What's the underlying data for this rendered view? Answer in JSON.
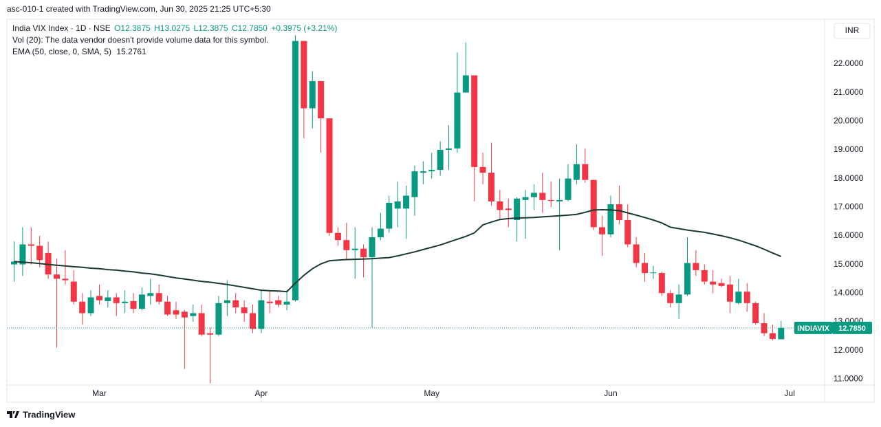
{
  "header": {
    "title": "asc-010-1 created with TradingView.com, Jun 30, 2025 21:25 UTC+5:30"
  },
  "legend": {
    "symbol": "India VIX Index · 1D · NSE",
    "open": "O12.3875",
    "high": "H13.0275",
    "low": "L12.3875",
    "close": "C12.7850",
    "change": "+0.3975 (+3.21%)",
    "volume_note": "Vol (20): The data vendor doesn't provide volume data for this symbol.",
    "ema_name": "EMA (50, close, 0, SMA, 5)",
    "ema_value": "15.2761"
  },
  "currency": "INR",
  "price_tag": {
    "symbol": "INDIAVIX",
    "value": "12.7850"
  },
  "footer": {
    "brand": "TradingView"
  },
  "chart_data": {
    "type": "candlestick",
    "up_color": "#089981",
    "down_color": "#f23645",
    "open": [
      15.0,
      15.0,
      15.7,
      15.65,
      15.4,
      14.65,
      14.5,
      14.4,
      13.7,
      13.3,
      13.9,
      13.72,
      13.85,
      13.65,
      13.72,
      13.45,
      13.9,
      14.0,
      13.7,
      13.4,
      13.35,
      13.2,
      13.3,
      12.6,
      12.55,
      13.65,
      13.75,
      13.5,
      13.3,
      12.75,
      13.7,
      13.75,
      13.6,
      13.75,
      22.8,
      20.45,
      21.4,
      20.1,
      16.1,
      15.85,
      15.5,
      15.55,
      15.25,
      15.95,
      16.25,
      16.95,
      16.95,
      17.35,
      18.2,
      18.25,
      18.3,
      19.0,
      19.05,
      21.0,
      21.6,
      18.4,
      18.2,
      17.2,
      16.95,
      16.55,
      17.25,
      17.35,
      17.5,
      17.25,
      17.2,
      17.25,
      17.95,
      18.5,
      17.95,
      16.3,
      16.05,
      17.1,
      16.55,
      15.7,
      15.05,
      14.7,
      14.7,
      14.0,
      13.65,
      13.95,
      15.05,
      14.8,
      14.4,
      14.35,
      14.3,
      13.65,
      14.05,
      13.65,
      12.95,
      12.6,
      12.3875
    ],
    "high": [
      15.8,
      16.3,
      16.3,
      16.0,
      15.8,
      15.2,
      15.5,
      14.8,
      14.0,
      14.1,
      14.3,
      14.1,
      14.0,
      14.1,
      14.0,
      14.2,
      14.5,
      14.3,
      13.9,
      13.7,
      13.4,
      13.6,
      13.6,
      12.8,
      13.9,
      14.45,
      14.0,
      13.75,
      13.6,
      14.1,
      14.1,
      13.9,
      14.1,
      23.0,
      22.8,
      21.75,
      21.4,
      20.1,
      16.3,
      16.45,
      16.3,
      15.7,
      16.3,
      16.8,
      17.4,
      17.9,
      17.75,
      18.45,
      18.6,
      18.9,
      19.3,
      19.85,
      22.4,
      22.75,
      21.6,
      18.9,
      19.25,
      17.6,
      17.3,
      17.35,
      17.6,
      17.8,
      18.2,
      17.9,
      18.0,
      18.5,
      19.2,
      19.05,
      17.95,
      16.7,
      17.4,
      17.75,
      17.1,
      15.95,
      15.4,
      14.95,
      14.75,
      14.1,
      14.3,
      15.95,
      15.5,
      15.0,
      14.8,
      14.5,
      14.6,
      14.5,
      14.35,
      13.7,
      13.3,
      12.9,
      13.0275
    ],
    "low": [
      14.4,
      14.6,
      15.0,
      14.9,
      14.5,
      12.1,
      14.3,
      13.6,
      12.9,
      13.2,
      13.6,
      13.5,
      13.2,
      13.3,
      13.3,
      13.4,
      13.6,
      13.6,
      13.2,
      13.1,
      11.35,
      13.0,
      12.5,
      10.85,
      12.5,
      13.2,
      13.3,
      13.0,
      12.6,
      12.6,
      13.3,
      13.5,
      13.4,
      13.7,
      19.4,
      19.75,
      18.9,
      16.0,
      15.65,
      15.15,
      14.5,
      14.55,
      12.8,
      15.85,
      16.1,
      16.3,
      15.9,
      16.7,
      17.8,
      18.0,
      18.1,
      18.3,
      18.9,
      21.0,
      17.2,
      17.8,
      17.05,
      16.6,
      16.3,
      15.8,
      15.9,
      16.9,
      16.8,
      17.0,
      15.5,
      17.2,
      17.8,
      17.85,
      16.2,
      15.3,
      15.95,
      16.4,
      15.6,
      14.9,
      14.4,
      14.5,
      13.9,
      13.5,
      13.1,
      13.9,
      14.6,
      14.3,
      14.0,
      14.2,
      13.3,
      13.6,
      13.35,
      12.9,
      12.5,
      12.35,
      12.3875
    ],
    "close": [
      15.1,
      15.7,
      15.65,
      15.15,
      14.65,
      14.5,
      14.45,
      13.7,
      13.3,
      13.85,
      13.75,
      13.85,
      13.65,
      13.7,
      13.45,
      13.95,
      14.0,
      13.7,
      13.25,
      13.25,
      13.15,
      13.3,
      12.55,
      12.55,
      13.65,
      13.75,
      13.5,
      13.3,
      12.75,
      13.75,
      13.65,
      13.6,
      13.7,
      22.8,
      20.45,
      21.4,
      20.1,
      16.1,
      15.85,
      15.5,
      15.55,
      15.25,
      15.95,
      16.25,
      17.15,
      17.2,
      17.4,
      18.25,
      18.25,
      18.3,
      19.0,
      19.05,
      21.0,
      21.6,
      18.4,
      18.2,
      17.2,
      16.9,
      16.9,
      17.3,
      17.35,
      17.5,
      17.25,
      17.22,
      17.25,
      18.0,
      18.5,
      17.95,
      16.3,
      16.05,
      17.1,
      16.55,
      15.7,
      15.05,
      14.7,
      14.72,
      14.0,
      13.65,
      13.95,
      15.05,
      14.8,
      14.4,
      14.3,
      14.25,
      13.7,
      14.05,
      13.65,
      12.95,
      12.6,
      12.4,
      12.785
    ],
    "ema": {
      "color": "#1b3a2f",
      "values": [
        15.1,
        15.08,
        15.06,
        15.03,
        15.0,
        14.97,
        14.95,
        14.92,
        14.9,
        14.87,
        14.85,
        14.82,
        14.8,
        14.77,
        14.74,
        14.7,
        14.67,
        14.63,
        14.58,
        14.53,
        14.49,
        14.45,
        14.41,
        14.38,
        14.34,
        14.3,
        14.25,
        14.2,
        14.15,
        14.1,
        14.08,
        14.07,
        14.05,
        14.35,
        14.62,
        14.85,
        15.02,
        15.13,
        15.15,
        15.17,
        15.18,
        15.19,
        15.2,
        15.22,
        15.24,
        15.3,
        15.37,
        15.44,
        15.52,
        15.6,
        15.68,
        15.78,
        15.88,
        15.98,
        16.1,
        16.38,
        16.48,
        16.57,
        16.6,
        16.62,
        16.63,
        16.64,
        16.66,
        16.68,
        16.7,
        16.72,
        16.75,
        16.82,
        16.9,
        16.91,
        16.9,
        16.88,
        16.8,
        16.72,
        16.64,
        16.55,
        16.45,
        16.3,
        16.25,
        16.2,
        16.16,
        16.12,
        16.06,
        16.0,
        15.93,
        15.85,
        15.75,
        15.65,
        15.53,
        15.4,
        15.2761
      ]
    },
    "ylim": [
      10.79,
      23.51
    ],
    "yticks": [
      {
        "value": 11,
        "label": "11.0000"
      },
      {
        "value": 12,
        "label": "12.0000"
      },
      {
        "value": 13,
        "label": "13.0000"
      },
      {
        "value": 14,
        "label": "14.0000"
      },
      {
        "value": 15,
        "label": "15.0000"
      },
      {
        "value": 16,
        "label": "16.0000"
      },
      {
        "value": 17,
        "label": "17.0000"
      },
      {
        "value": 18,
        "label": "18.0000"
      },
      {
        "value": 19,
        "label": "19.0000"
      },
      {
        "value": 20,
        "label": "20.0000"
      },
      {
        "value": 21,
        "label": "21.0000"
      },
      {
        "value": 22,
        "label": "22.0000"
      }
    ],
    "xlim": [
      -0.85,
      95.1
    ],
    "xticks": [
      {
        "value": 10,
        "label": "Mar"
      },
      {
        "value": 29,
        "label": "Apr"
      },
      {
        "value": 49,
        "label": "May"
      },
      {
        "value": 70,
        "label": "Jun"
      },
      {
        "value": 91,
        "label": "Jul"
      }
    ],
    "grid": false
  }
}
